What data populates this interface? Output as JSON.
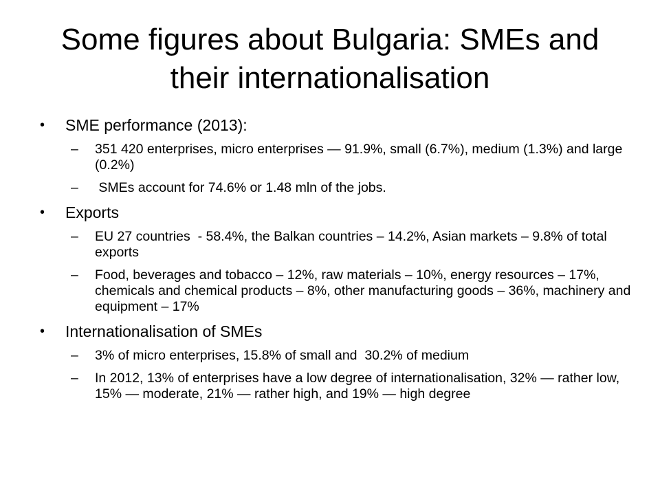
{
  "slide": {
    "title": "Some figures about Bulgaria: SMEs and their internationalisation",
    "bullet_glyph": "•",
    "dash_glyph": "–",
    "sections": [
      {
        "heading": "SME performance  (2013):",
        "items": [
          "351 420 enterprises, micro enterprises — 91.9%, small (6.7%), medium (1.3%) and large (0.2%)",
          " SMEs account for 74.6% or 1.48 mln of the jobs."
        ]
      },
      {
        "heading": "Exports",
        "items": [
          "EU 27 countries  - 58.4%, the Balkan countries – 14.2%, Asian markets – 9.8% of total exports",
          "Food, beverages and tobacco – 12%, raw materials – 10%, energy resources – 17%, chemicals and chemical products – 8%, other manufacturing goods – 36%, machinery and equipment – 17%"
        ]
      },
      {
        "heading": "Internationalisation of SMEs",
        "items": [
          "3% of micro enterprises, 15.8% of small and  30.2% of medium",
          "In 2012, 13% of enterprises have a low degree of internationalisation, 32% — rather low, 15% — moderate, 21% — rather high, and 19% — high degree"
        ]
      }
    ]
  }
}
